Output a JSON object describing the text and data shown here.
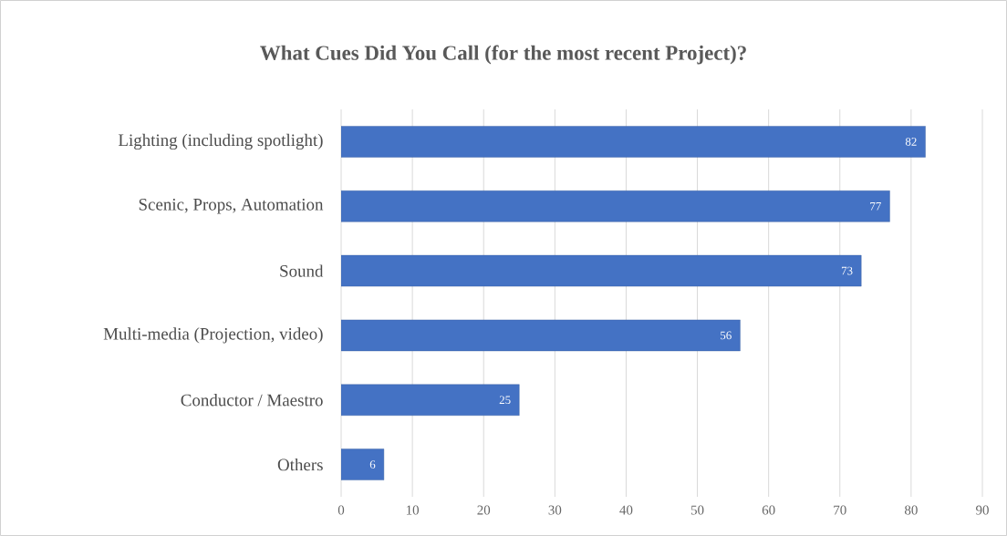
{
  "chart_data": {
    "type": "bar",
    "orientation": "horizontal",
    "title": "What Cues Did You Call (for the most recent Project)?",
    "categories": [
      "Lighting (including spotlight)",
      "Scenic, Props, Automation",
      "Sound",
      "Multi-media (Projection, video)",
      "Conductor / Maestro",
      "Others"
    ],
    "values": [
      82,
      77,
      73,
      56,
      25,
      6
    ],
    "color": "#4472c4",
    "xlim": [
      0,
      90
    ],
    "xticks": [
      0,
      10,
      20,
      30,
      40,
      50,
      60,
      70,
      80,
      90
    ],
    "grid": "x",
    "data_labels": true
  }
}
